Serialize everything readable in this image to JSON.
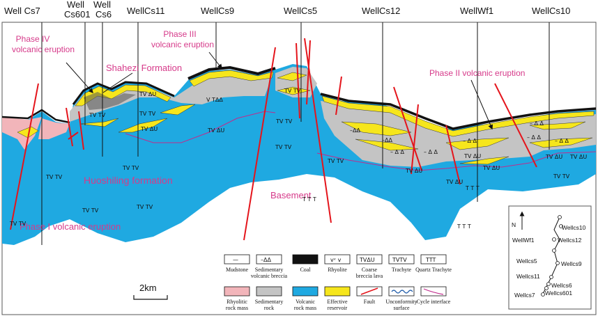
{
  "wells": [
    "Well Cs7",
    "Well",
    "Cs601",
    "Well",
    "Cs6",
    "WellCs11",
    "WellCs9",
    "WellCs5",
    "WellCs12",
    "WellWf1",
    "WellCs10"
  ],
  "annotations": {
    "phase4_l1": "Phase IV",
    "phase4_l2": "volcanic eruption",
    "phase3_l1": "Phase III",
    "phase3_l2": "volcanic eruption",
    "phase2": "Phase II volcanic eruption",
    "phase1": "Phase I volcanic eruption",
    "shahezi": "Shahezi Formation",
    "huoshiling": "Huoshiling formation",
    "basement": "Basement"
  },
  "rock_symbols": {
    "tvtv": "TV TV",
    "tvdu": "TV ΔU",
    "vtdd": "V TΔΔ",
    "ttt": "T T T",
    "dd": "–ΔΔ",
    "ddd": "– Δ Δ"
  },
  "scale": "2km",
  "legend": {
    "mudstone": "Mudstone",
    "sed_breccia_1": "Sedimentary",
    "sed_breccia_2": "volcanic breccia",
    "coal": "Coal",
    "rhyolite": "Rhyolite",
    "coarse_1": "Coarse",
    "coarse_2": "breccia lava",
    "trachyte": "Trachyte",
    "quartz": "Quartz Trachyte",
    "rhyolitic_1": "Rhyolitic",
    "rhyolitic_2": "rock mass",
    "sedrock_1": "Sedimentary",
    "sedrock_2": "rock",
    "volcanic_1": "Volcanic",
    "volcanic_2": "rock mass",
    "eff_1": "Effective",
    "eff_2": "reservoir",
    "fault": "Fault",
    "unconf_1": "Unconformity",
    "unconf_2": "surface",
    "cycle": "Cycle interface",
    "sym_mud": "—",
    "sym_sed": "–ΔΔ",
    "sym_rhy": "vᵛ v",
    "sym_coarse": "TVΔU",
    "sym_tra": "TVTV",
    "sym_qtr": "TTT"
  },
  "inset": {
    "north": "N",
    "wells": [
      "Wellcs10",
      "WellWf1",
      "Wellcs12",
      "Wellcs5",
      "Wellcs9",
      "Wellcs11",
      "Wellcs6",
      "Wellcs7",
      "Wellcs601"
    ]
  },
  "colors": {
    "volcanic": "#1fa9e1",
    "sedimentary": "#c4c4c4",
    "reservoir": "#f6e61c",
    "coal": "#111111",
    "rhyolitic": "#f2b5ba",
    "fault": "#e4141b",
    "annotation": "#d63a8a",
    "cycle": "#c02c8c"
  }
}
